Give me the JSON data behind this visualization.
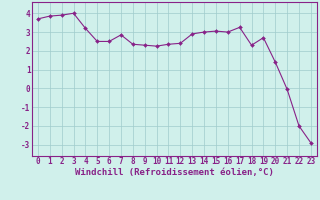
{
  "x": [
    0,
    1,
    2,
    3,
    4,
    5,
    6,
    7,
    8,
    9,
    10,
    11,
    12,
    13,
    14,
    15,
    16,
    17,
    18,
    19,
    20,
    21,
    22,
    23
  ],
  "y": [
    3.7,
    3.85,
    3.9,
    4.0,
    3.2,
    2.5,
    2.5,
    2.85,
    2.35,
    2.3,
    2.25,
    2.35,
    2.4,
    2.9,
    3.0,
    3.05,
    3.0,
    3.25,
    2.3,
    2.7,
    1.4,
    -0.05,
    -2.0,
    -2.9
  ],
  "line_color": "#882288",
  "marker": "D",
  "markersize": 2.0,
  "linewidth": 0.8,
  "bg_color": "#d0f0eb",
  "grid_color": "#a0cccc",
  "xlabel": "Windchill (Refroidissement éolien,°C)",
  "xlabel_color": "#882288",
  "xlabel_fontsize": 6.5,
  "yticks": [
    -3,
    -2,
    -1,
    0,
    1,
    2,
    3,
    4
  ],
  "ylabels": [
    "-3",
    "-2",
    "-1",
    "0",
    "1",
    "2",
    "3",
    "4"
  ],
  "xticks": [
    0,
    1,
    2,
    3,
    4,
    5,
    6,
    7,
    8,
    9,
    10,
    11,
    12,
    13,
    14,
    15,
    16,
    17,
    18,
    19,
    20,
    21,
    22,
    23
  ],
  "ylim": [
    -3.6,
    4.6
  ],
  "xlim": [
    -0.5,
    23.5
  ],
  "tick_color": "#882288",
  "tick_fontsize": 5.5,
  "spine_color": "#882288",
  "fig_width": 3.2,
  "fig_height": 2.0,
  "dpi": 100
}
